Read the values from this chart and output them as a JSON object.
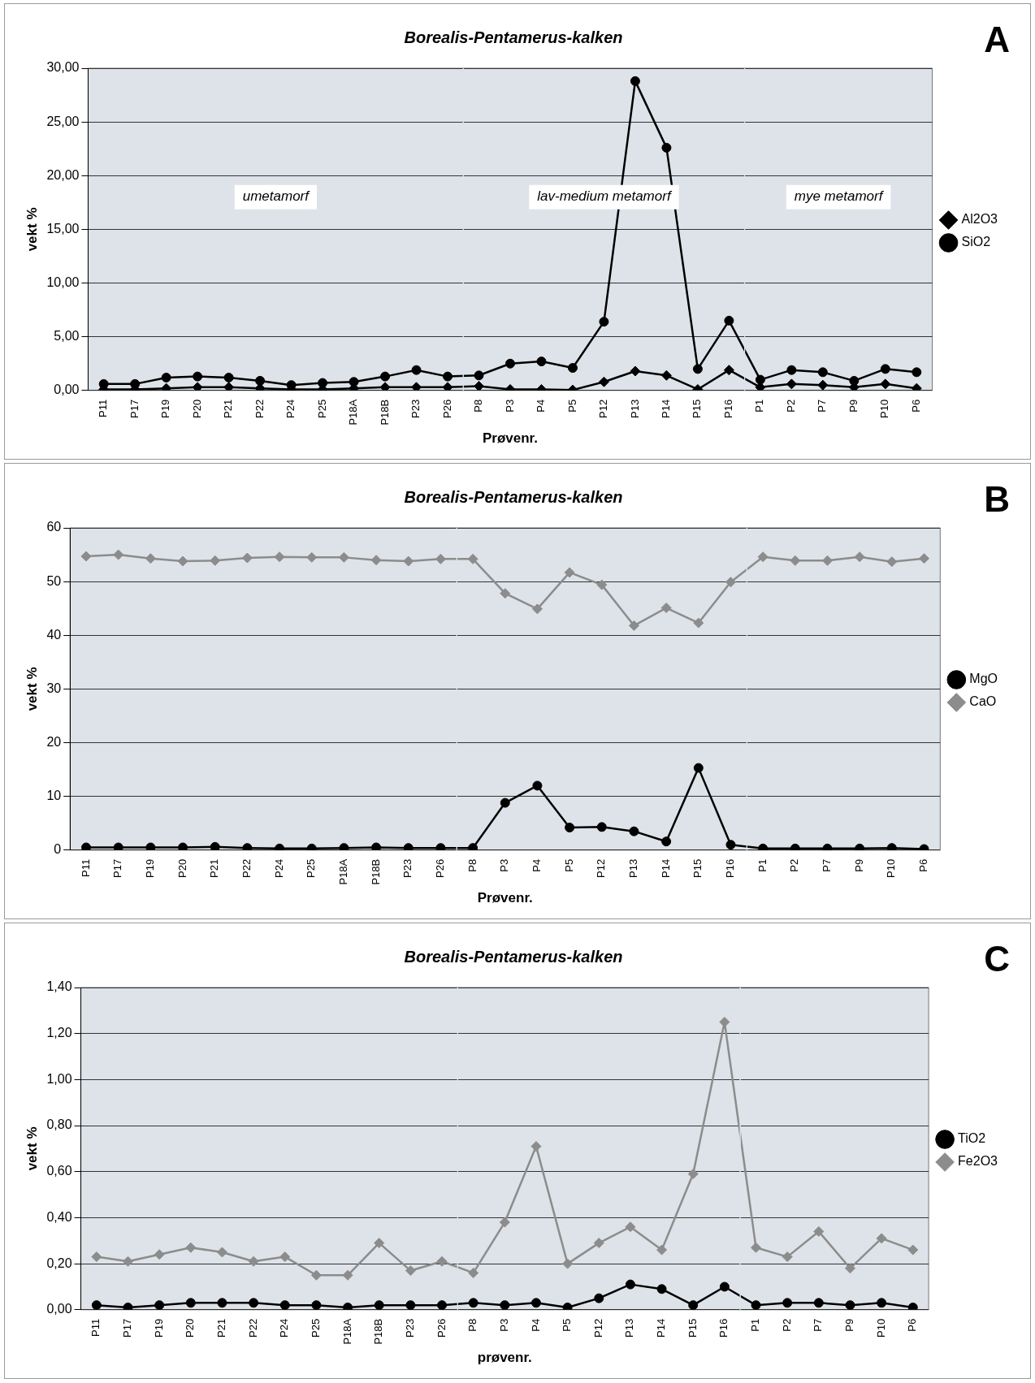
{
  "chart_data": [
    {
      "type": "line",
      "title": "Borealis-Pentamerus-kalken",
      "xlabel": "Prøvenr.",
      "ylabel": "vekt %",
      "annotations": [
        "A"
      ],
      "categories": [
        "P11",
        "P17",
        "P19",
        "P20",
        "P21",
        "P22",
        "P24",
        "P25",
        "P18A",
        "P18B",
        "P23",
        "P26",
        "P8",
        "P3",
        "P4",
        "P5",
        "P12",
        "P13",
        "P14",
        "P15",
        "P16",
        "P1",
        "P2",
        "P7",
        "P9",
        "P10",
        "P6"
      ],
      "series": [
        {
          "name": "SiO2",
          "color": "#000000",
          "marker": "circle",
          "values": [
            0.6,
            0.6,
            1.2,
            1.3,
            1.2,
            0.9,
            0.5,
            0.7,
            0.8,
            1.3,
            1.9,
            1.3,
            1.4,
            2.5,
            2.7,
            2.1,
            6.4,
            28.8,
            22.6,
            2.0,
            6.5,
            1.0,
            1.9,
            1.7,
            0.9,
            2.0,
            1.7
          ]
        },
        {
          "name": "Al2O3",
          "color": "#000000",
          "marker": "diamond",
          "values": [
            0.1,
            0.1,
            0.2,
            0.3,
            0.3,
            0.2,
            0.1,
            0.1,
            0.2,
            0.3,
            0.3,
            0.3,
            0.4,
            0.1,
            0.1,
            0.05,
            0.8,
            1.8,
            1.4,
            0.1,
            1.9,
            0.3,
            0.6,
            0.5,
            0.3,
            0.6,
            0.2
          ]
        }
      ],
      "ylim": [
        0,
        30
      ],
      "yticks": [
        {
          "value": 0,
          "label": "0,00"
        },
        {
          "value": 5,
          "label": "5,00"
        },
        {
          "value": 10,
          "label": "10,00"
        },
        {
          "value": 15,
          "label": "15,00"
        },
        {
          "value": 20,
          "label": "20,00"
        },
        {
          "value": 25,
          "label": "25,00"
        },
        {
          "value": 30,
          "label": "30,00"
        }
      ],
      "bands": [
        {
          "axis": "x",
          "from": "P11",
          "to": "P26",
          "label": "umetamorf",
          "color": "#dde3e8"
        },
        {
          "axis": "x",
          "from": "P8",
          "to": "P16",
          "label": "lav-medium metamorf",
          "color": "#dde3e8"
        },
        {
          "axis": "x",
          "from": "P1",
          "to": "P6",
          "label": "mye metamorf",
          "color": "#dde3e8"
        }
      ],
      "grid": "y",
      "legend": "right",
      "line_style": "solid"
    },
    {
      "type": "line",
      "title": "Borealis-Pentamerus-kalken",
      "xlabel": "Prøvenr.",
      "ylabel": "vekt %",
      "annotations": [
        "B"
      ],
      "categories": [
        "P11",
        "P17",
        "P19",
        "P20",
        "P21",
        "P22",
        "P24",
        "P25",
        "P18A",
        "P18B",
        "P23",
        "P26",
        "P8",
        "P3",
        "P4",
        "P5",
        "P12",
        "P13",
        "P14",
        "P15",
        "P16",
        "P1",
        "P2",
        "P7",
        "P9",
        "P10",
        "P6"
      ],
      "series": [
        {
          "name": "CaO",
          "color": "#8c8c8c",
          "marker": "diamond",
          "values": [
            54.7,
            55.0,
            54.3,
            53.8,
            53.9,
            54.4,
            54.6,
            54.5,
            54.5,
            54.0,
            53.8,
            54.2,
            54.2,
            47.8,
            44.9,
            51.7,
            49.4,
            41.8,
            45.1,
            42.3,
            49.9,
            54.6,
            53.9,
            53.9,
            54.6,
            53.7,
            54.3
          ]
        },
        {
          "name": "MgO",
          "color": "#000000",
          "marker": "circle",
          "values": [
            0.5,
            0.5,
            0.5,
            0.5,
            0.6,
            0.4,
            0.3,
            0.3,
            0.4,
            0.5,
            0.4,
            0.4,
            0.4,
            8.8,
            12.0,
            4.2,
            4.3,
            3.5,
            1.6,
            15.3,
            1.0,
            0.3,
            0.3,
            0.3,
            0.3,
            0.4,
            0.2
          ]
        }
      ],
      "ylim": [
        0,
        60
      ],
      "yticks": [
        0,
        10,
        20,
        30,
        40,
        50,
        60
      ],
      "bands": [
        {
          "axis": "x",
          "from": "P11",
          "to": "P26",
          "color": "#dde3e8"
        },
        {
          "axis": "x",
          "from": "P8",
          "to": "P16",
          "color": "#dde3e8"
        },
        {
          "axis": "x",
          "from": "P1",
          "to": "P6",
          "color": "#dde3e8"
        }
      ],
      "grid": "y",
      "legend": "right",
      "line_style": "solid"
    },
    {
      "type": "line",
      "title": "Borealis-Pentamerus-kalken",
      "xlabel": "prøvenr.",
      "ylabel": "vekt %",
      "annotations": [
        "C"
      ],
      "categories": [
        "P11",
        "P17",
        "P19",
        "P20",
        "P21",
        "P22",
        "P24",
        "P25",
        "P18A",
        "P18B",
        "P23",
        "P26",
        "P8",
        "P3",
        "P4",
        "P5",
        "P12",
        "P13",
        "P14",
        "P15",
        "P16",
        "P1",
        "P2",
        "P7",
        "P9",
        "P10",
        "P6"
      ],
      "series": [
        {
          "name": "Fe2O3",
          "color": "#8c8c8c",
          "marker": "diamond",
          "values": [
            0.23,
            0.21,
            0.24,
            0.27,
            0.25,
            0.21,
            0.23,
            0.15,
            0.15,
            0.29,
            0.17,
            0.21,
            0.16,
            0.38,
            0.71,
            0.2,
            0.29,
            0.36,
            0.26,
            0.59,
            1.25,
            0.27,
            0.23,
            0.34,
            0.18,
            0.31,
            0.26
          ]
        },
        {
          "name": "TiO2",
          "color": "#000000",
          "marker": "circle",
          "values": [
            0.02,
            0.01,
            0.02,
            0.03,
            0.03,
            0.03,
            0.02,
            0.02,
            0.01,
            0.02,
            0.02,
            0.02,
            0.03,
            0.02,
            0.03,
            0.01,
            0.05,
            0.11,
            0.09,
            0.02,
            0.1,
            0.02,
            0.03,
            0.03,
            0.02,
            0.03,
            0.01
          ]
        }
      ],
      "ylim": [
        0,
        1.4
      ],
      "yticks": [
        {
          "value": 0,
          "label": "0,00"
        },
        {
          "value": 0.2,
          "label": "0,20"
        },
        {
          "value": 0.4,
          "label": "0,40"
        },
        {
          "value": 0.6,
          "label": "0,60"
        },
        {
          "value": 0.8,
          "label": "0,80"
        },
        {
          "value": 1.0,
          "label": "1,00"
        },
        {
          "value": 1.2,
          "label": "1,20"
        },
        {
          "value": 1.4,
          "label": "1,40"
        }
      ],
      "bands": [
        {
          "axis": "x",
          "from": "P11",
          "to": "P26",
          "color": "#dde3e8"
        },
        {
          "axis": "x",
          "from": "P8",
          "to": "P16",
          "color": "#dde3e8"
        },
        {
          "axis": "x",
          "from": "P1",
          "to": "P6",
          "color": "#dde3e8"
        }
      ],
      "grid": "y",
      "legend": "right",
      "line_style": "solid"
    }
  ]
}
